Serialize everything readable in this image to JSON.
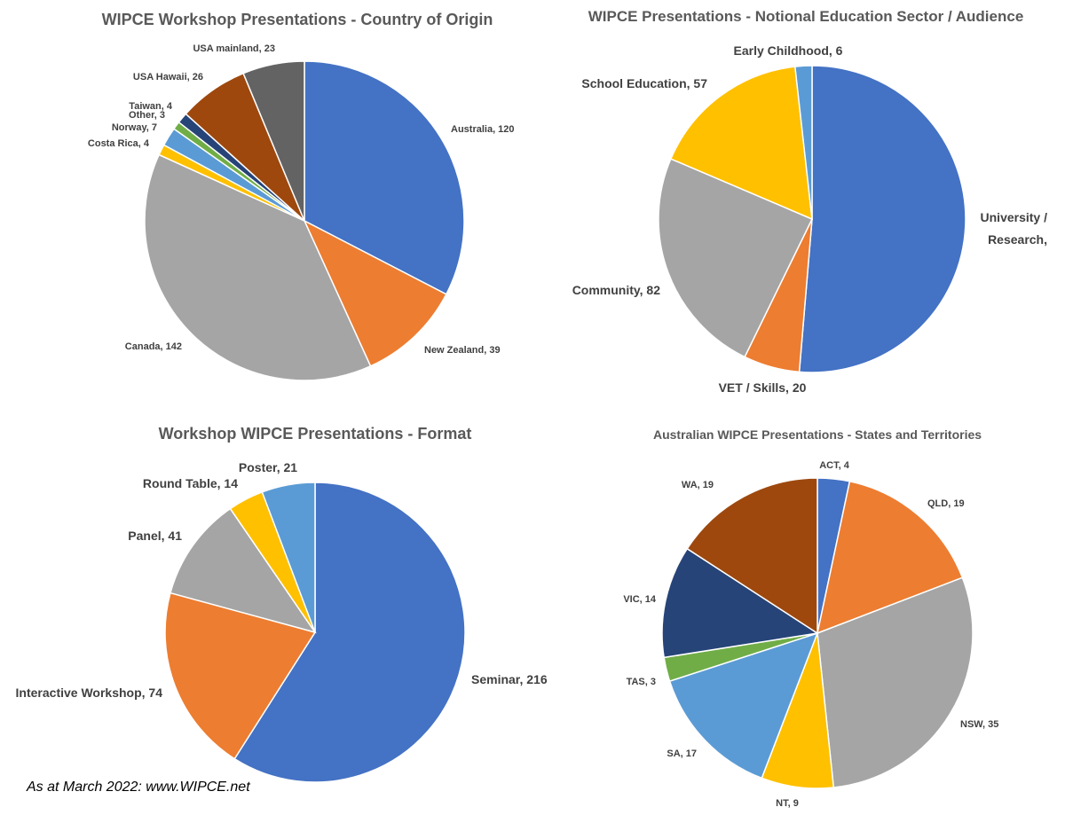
{
  "footer": "As at March 2022: www.WIPCE.net",
  "chart_data": [
    {
      "type": "pie",
      "title": "WIPCE Workshop Presentations - Country of Origin",
      "labels": [
        "Australia, 120",
        "New Zealand, 39",
        "Canada, 142",
        "Costa Rica, 4",
        "Norway, 7",
        "Other, 3",
        "Taiwan, 4",
        "USA Hawaii, 26",
        "USA mainland, 23"
      ],
      "categories": [
        "Australia",
        "New Zealand",
        "Canada",
        "Costa Rica",
        "Norway",
        "Other",
        "Taiwan",
        "USA Hawaii",
        "USA mainland"
      ],
      "values": [
        120,
        39,
        142,
        4,
        7,
        3,
        4,
        26,
        23
      ],
      "colors": [
        "#4472c4",
        "#ed7d31",
        "#a5a5a5",
        "#ffc000",
        "#5b9bd5",
        "#70ad47",
        "#264478",
        "#9e480e",
        "#636363"
      ]
    },
    {
      "type": "pie",
      "title": "WIPCE Presentations - Notional Education Sector / Audience",
      "labels": [
        "University / Research,",
        "VET / Skills, 20",
        "Community, 82",
        "School Education, 57",
        "Early Childhood, 6"
      ],
      "categories": [
        "University / Research",
        "VET / Skills",
        "Community",
        "School Education",
        "Early Childhood"
      ],
      "values": [
        174,
        20,
        82,
        57,
        6
      ],
      "colors": [
        "#4472c4",
        "#ed7d31",
        "#a5a5a5",
        "#ffc000",
        "#5b9bd5"
      ]
    },
    {
      "type": "pie",
      "title": "Workshop WIPCE Presentations - Format",
      "labels": [
        "Seminar, 216",
        "Interactive Workshop, 74",
        "Panel, 41",
        "Round Table, 14",
        "Poster, 21"
      ],
      "categories": [
        "Seminar",
        "Interactive Workshop",
        "Panel",
        "Round Table",
        "Poster"
      ],
      "values": [
        216,
        74,
        41,
        14,
        21
      ],
      "colors": [
        "#4472c4",
        "#ed7d31",
        "#a5a5a5",
        "#ffc000",
        "#5b9bd5"
      ]
    },
    {
      "type": "pie",
      "title": "Australian WIPCE Presentations - States and Territories",
      "labels": [
        "ACT, 4",
        "QLD, 19",
        "NSW, 35",
        "NT, 9",
        "SA, 17",
        "TAS, 3",
        "VIC, 14",
        "WA, 19"
      ],
      "categories": [
        "ACT",
        "QLD",
        "NSW",
        "NT",
        "SA",
        "TAS",
        "VIC",
        "WA"
      ],
      "values": [
        4,
        19,
        35,
        9,
        17,
        3,
        14,
        19
      ],
      "colors": [
        "#4472c4",
        "#ed7d31",
        "#a5a5a5",
        "#ffc000",
        "#5b9bd5",
        "#70ad47",
        "#264478",
        "#9e480e"
      ]
    }
  ]
}
